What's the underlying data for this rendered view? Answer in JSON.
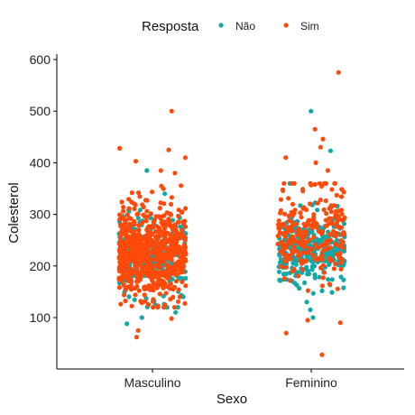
{
  "chart_data": {
    "type": "scatter",
    "title": "",
    "xlabel": "Sexo",
    "ylabel": "Colesterol",
    "categories": [
      "Masculino",
      "Feminino"
    ],
    "ylim": [
      0,
      610
    ],
    "yticks": [
      100,
      200,
      300,
      400,
      500,
      600
    ],
    "grid": false,
    "jitter": true,
    "legend": {
      "title": "Resposta",
      "placement": "top",
      "entries": [
        {
          "name": "Não",
          "color": "#11A8A8"
        },
        {
          "name": "Sim",
          "color": "#FF4A0A"
        }
      ]
    },
    "series": [
      {
        "name": "Não",
        "color": "#11A8A8",
        "groups": [
          {
            "category": "Masculino",
            "n": 300,
            "center": 225,
            "spread": 35,
            "outliers": [
              88,
              100,
              110,
              120,
              125,
              340,
              385
            ]
          },
          {
            "category": "Feminino",
            "n": 330,
            "center": 232,
            "spread": 33,
            "outliers": [
              100,
              115,
              130,
              360,
              423,
              500
            ]
          }
        ]
      },
      {
        "name": "Sim",
        "color": "#FF4A0A",
        "groups": [
          {
            "category": "Masculino",
            "n": 650,
            "center": 228,
            "spread": 45,
            "outliers": [
              62,
              75,
              98,
              380,
              385,
              403,
              410,
              425,
              428,
              500
            ]
          },
          {
            "category": "Feminino",
            "n": 240,
            "center": 262,
            "spread": 48,
            "outliers": [
              28,
              70,
              90,
              95,
              385,
              400,
              410,
              430,
              446,
              465,
              575
            ]
          }
        ]
      }
    ]
  }
}
